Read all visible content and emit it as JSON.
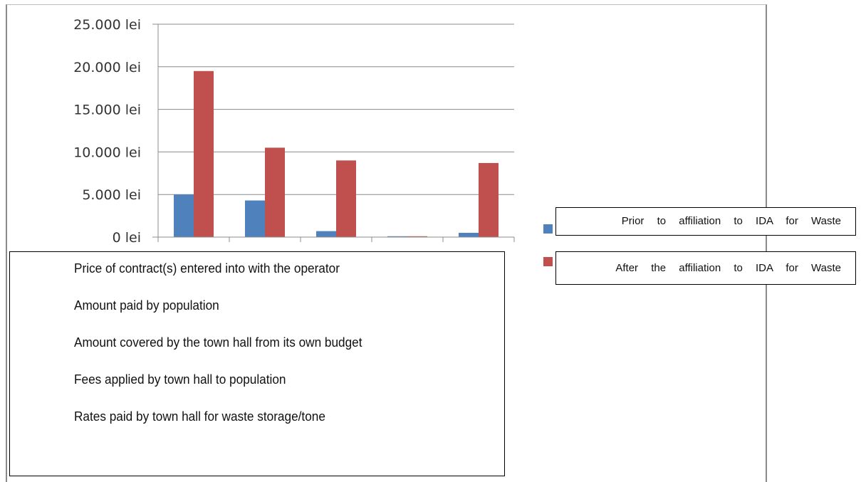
{
  "chart_data": {
    "type": "bar",
    "categories": [
      "Price of contract(s) entered into with the operator",
      "Amount paid by population",
      "Amount covered by the town hall from its own budget",
      "Fees applied by town hall to population",
      "Rates paid by town hall for waste storage/tone"
    ],
    "series": [
      {
        "name": "Prior to affiliation to IDA for Waste",
        "color": "#4f81bd",
        "values": [
          5000,
          4300,
          700,
          100,
          500
        ]
      },
      {
        "name": "After the affiliation to IDA for Waste",
        "color": "#c0504d",
        "values": [
          19500,
          10500,
          9000,
          100,
          8700
        ]
      }
    ],
    "ylim": [
      0,
      25000
    ],
    "y_ticks": [
      0,
      5000,
      10000,
      15000,
      20000,
      25000
    ],
    "y_tick_labels": [
      "0 lei",
      "5.000 lei",
      "10.000 lei",
      "15.000 lei",
      "20.000 lei",
      "25.000 lei"
    ],
    "grid": true,
    "legend_position": "right"
  }
}
